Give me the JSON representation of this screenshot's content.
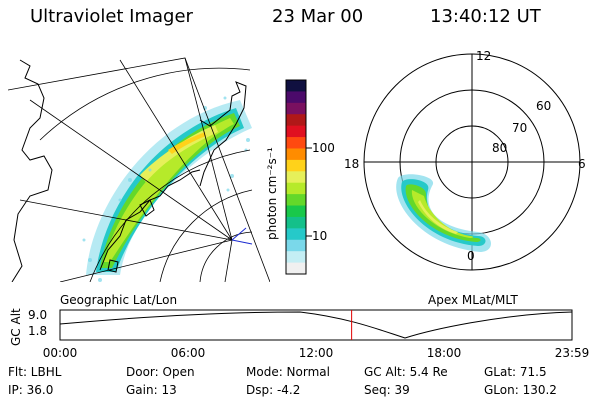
{
  "header": {
    "instrument": "Ultraviolet Imager",
    "date": "23 Mar 00",
    "time": "13:40:12 UT"
  },
  "colorbar": {
    "unit_label": "photon cm⁻²s⁻¹",
    "ticks": [
      "100",
      "10"
    ],
    "colors": [
      "#101040",
      "#4b0a6a",
      "#7a1060",
      "#b01818",
      "#e01020",
      "#ff4a10",
      "#ff8c00",
      "#ffd21a",
      "#e6f05a",
      "#b6ea2a",
      "#64d82a",
      "#19c84a",
      "#14c08a",
      "#26c9c9",
      "#7ad8ea",
      "#c4eef4",
      "#f0f0f0"
    ]
  },
  "panels": {
    "left_caption": "Geographic Lat/Lon",
    "right_caption": "Apex MLat/MLT",
    "polar_labels": {
      "top": "12",
      "bottom": "0",
      "left": "18",
      "right": "6",
      "r60": "60",
      "r70": "70",
      "r80": "80"
    }
  },
  "altitude_plot": {
    "ylabel": "GC Alt",
    "yticks": [
      "9.0",
      "1.8"
    ],
    "xticks": [
      "00:00",
      "06:00",
      "12:00",
      "18:00",
      "23:59"
    ],
    "marker_time_hours": 13.67,
    "marker_color": "#e00000"
  },
  "status": {
    "filter": "Flt: LBHL",
    "ip": "IP: 36.0",
    "door": "Door: Open",
    "gain": "Gain: 13",
    "mode": "Mode: Normal",
    "dsp": "Dsp:     -4.2",
    "gc_alt": "GC Alt: 5.4 Re",
    "seq": "Seq: 39",
    "glat": "GLat:  71.5",
    "glon": "GLon: 130.2"
  }
}
